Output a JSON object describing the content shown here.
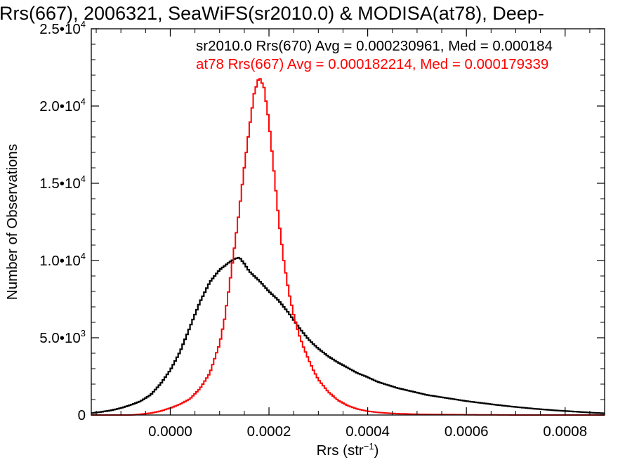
{
  "chart_data": {
    "type": "line",
    "title": "Rrs(667), 2006321, SeaWiFS(sr2010.0) & MODISA(at78), Deep-",
    "xlabel": "Rrs (str",
    "xlabel_sup": "−1",
    "xlabel_close": ")",
    "ylabel": "Number of Observations",
    "xlim": [
      -0.00016,
      0.00088
    ],
    "ylim": [
      0,
      25000
    ],
    "grid": false,
    "x_ticks": [
      {
        "value": 0.0,
        "label": "0.0000"
      },
      {
        "value": 0.0002,
        "label": "0.0002"
      },
      {
        "value": 0.0004,
        "label": "0.0004"
      },
      {
        "value": 0.0006,
        "label": "0.0006"
      },
      {
        "value": 0.0008,
        "label": "0.0008"
      }
    ],
    "y_ticks": [
      {
        "value": 0,
        "mantissa": "0",
        "exp": ""
      },
      {
        "value": 5000,
        "mantissa": "5.0•10",
        "exp": "3"
      },
      {
        "value": 10000,
        "mantissa": "1.0•10",
        "exp": "4"
      },
      {
        "value": 15000,
        "mantissa": "1.5•10",
        "exp": "4"
      },
      {
        "value": 20000,
        "mantissa": "2.0•10",
        "exp": "4"
      },
      {
        "value": 25000,
        "mantissa": "2.5•10",
        "exp": "4"
      }
    ],
    "annotations": [
      {
        "text": "sr2010.0 Rrs(670) Avg = 0.000230961, Med = 0.000184",
        "color": "#000000"
      },
      {
        "text": "at78 Rrs(667) Avg = 0.000182214, Med = 0.000179339",
        "color": "#ff0000"
      }
    ],
    "series": [
      {
        "color": "#000000",
        "points": [
          [
            -0.00016,
            120
          ],
          [
            -0.00014,
            200
          ],
          [
            -0.00012,
            300
          ],
          [
            -0.0001,
            450
          ],
          [
            -8e-05,
            650
          ],
          [
            -6e-05,
            900
          ],
          [
            -4e-05,
            1300
          ],
          [
            -2e-05,
            2000
          ],
          [
            0.0,
            2900
          ],
          [
            2e-05,
            4100
          ],
          [
            4e-05,
            5700
          ],
          [
            6e-05,
            7300
          ],
          [
            8e-05,
            8600
          ],
          [
            0.0001,
            9400
          ],
          [
            0.00012,
            9900
          ],
          [
            0.00013,
            10100
          ],
          [
            0.00014,
            10200
          ],
          [
            0.00015,
            9800
          ],
          [
            0.00016,
            9300
          ],
          [
            0.00018,
            8700
          ],
          [
            0.0002,
            8000
          ],
          [
            0.00022,
            7400
          ],
          [
            0.00024,
            6600
          ],
          [
            0.00026,
            5700
          ],
          [
            0.00028,
            4900
          ],
          [
            0.0003,
            4300
          ],
          [
            0.00032,
            3800
          ],
          [
            0.00034,
            3400
          ],
          [
            0.00036,
            3050
          ],
          [
            0.00038,
            2700
          ],
          [
            0.0004,
            2450
          ],
          [
            0.00042,
            2150
          ],
          [
            0.00044,
            1950
          ],
          [
            0.00046,
            1750
          ],
          [
            0.00048,
            1600
          ],
          [
            0.0005,
            1450
          ],
          [
            0.00052,
            1300
          ],
          [
            0.00054,
            1200
          ],
          [
            0.00056,
            1100
          ],
          [
            0.00058,
            1000
          ],
          [
            0.0006,
            900
          ],
          [
            0.00062,
            820
          ],
          [
            0.00064,
            740
          ],
          [
            0.00066,
            660
          ],
          [
            0.00068,
            590
          ],
          [
            0.0007,
            520
          ],
          [
            0.00072,
            460
          ],
          [
            0.00074,
            400
          ],
          [
            0.00076,
            350
          ],
          [
            0.00078,
            300
          ],
          [
            0.0008,
            260
          ],
          [
            0.00082,
            220
          ],
          [
            0.00084,
            180
          ],
          [
            0.00086,
            140
          ],
          [
            0.00088,
            110
          ]
        ]
      },
      {
        "color": "#ff0000",
        "points": [
          [
            -0.00016,
            0
          ],
          [
            -0.00014,
            0
          ],
          [
            -0.00012,
            0
          ],
          [
            -0.0001,
            0
          ],
          [
            -8e-05,
            0
          ],
          [
            -6e-05,
            50
          ],
          [
            -4e-05,
            120
          ],
          [
            -2e-05,
            250
          ],
          [
            0.0,
            450
          ],
          [
            2e-05,
            700
          ],
          [
            4e-05,
            1050
          ],
          [
            6e-05,
            1700
          ],
          [
            8e-05,
            2700
          ],
          [
            0.0001,
            4600
          ],
          [
            0.00011,
            6200
          ],
          [
            0.00012,
            8400
          ],
          [
            0.00013,
            10800
          ],
          [
            0.00014,
            13300
          ],
          [
            0.00015,
            16000
          ],
          [
            0.00016,
            18500
          ],
          [
            0.00017,
            20800
          ],
          [
            0.00018,
            21900
          ],
          [
            0.00019,
            21200
          ],
          [
            0.0002,
            19000
          ],
          [
            0.00021,
            15800
          ],
          [
            0.00022,
            12600
          ],
          [
            0.00023,
            10000
          ],
          [
            0.00024,
            8000
          ],
          [
            0.00025,
            6500
          ],
          [
            0.00026,
            5300
          ],
          [
            0.00027,
            4400
          ],
          [
            0.00028,
            3600
          ],
          [
            0.00029,
            2900
          ],
          [
            0.0003,
            2300
          ],
          [
            0.00032,
            1500
          ],
          [
            0.00034,
            950
          ],
          [
            0.00036,
            600
          ],
          [
            0.00038,
            380
          ],
          [
            0.0004,
            250
          ],
          [
            0.00042,
            170
          ],
          [
            0.00044,
            120
          ],
          [
            0.00046,
            90
          ],
          [
            0.00048,
            70
          ],
          [
            0.0005,
            50
          ],
          [
            0.00055,
            30
          ],
          [
            0.0006,
            20
          ],
          [
            0.00065,
            10
          ],
          [
            0.0007,
            0
          ],
          [
            0.00075,
            0
          ],
          [
            0.0008,
            0
          ],
          [
            0.00088,
            0
          ]
        ]
      }
    ]
  }
}
